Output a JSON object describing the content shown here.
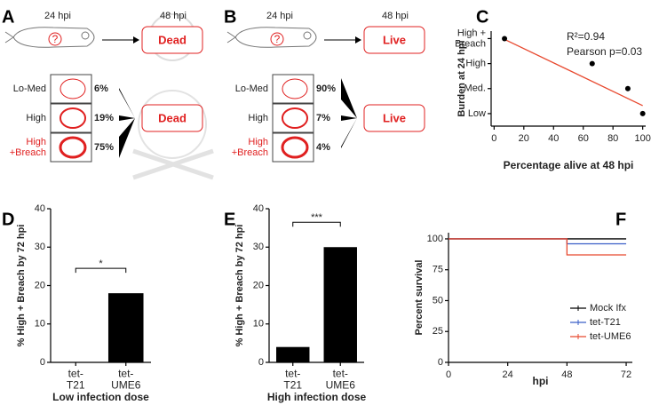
{
  "panel_labels": [
    "A",
    "B",
    "C",
    "D",
    "E",
    "F"
  ],
  "diagrams": [
    {
      "before_label": "24 hpi",
      "after_label": "48 hpi",
      "outcome": "Dead",
      "rows": [
        {
          "label": "Lo-Med",
          "percent": "6%",
          "color": "#222"
        },
        {
          "label": "High",
          "percent": "19%",
          "color": "#222"
        },
        {
          "label": "High\n+Breach",
          "percent": "75%",
          "color": "#e02020"
        }
      ]
    },
    {
      "before_label": "24 hpi",
      "after_label": "48 hpi",
      "outcome": "Live",
      "rows": [
        {
          "label": "Lo-Med",
          "percent": "90%",
          "color": "#222"
        },
        {
          "label": "High",
          "percent": "7%",
          "color": "#222"
        },
        {
          "label": "High\n+Breach",
          "percent": "4%",
          "color": "#e02020"
        }
      ]
    }
  ],
  "chart_data": [
    {
      "type": "scatter",
      "xlabel": "Percentage alive at 48 hpi",
      "ylabel": "Burden at 24 hpi",
      "x": [
        7,
        66,
        90,
        100
      ],
      "values": [
        4,
        3,
        2,
        1
      ],
      "color": "#000",
      "xlim": [
        -2,
        102
      ],
      "xticks": [
        0,
        20,
        40,
        60,
        80,
        100
      ],
      "ylim": [
        0.5,
        4.3
      ],
      "yticks": [
        {
          "value": 1,
          "label": "Low"
        },
        {
          "value": 2,
          "label": "Med."
        },
        {
          "value": 3,
          "label": "High"
        },
        {
          "value": 4,
          "label": "High +\nBreach"
        }
      ],
      "fit": {
        "x": [
          7,
          100
        ],
        "values": [
          3.97,
          1.32
        ],
        "color": "#e8492f"
      },
      "annotations": [
        "R²=0.94",
        "Pearson p=0.03"
      ]
    },
    {
      "type": "bar",
      "xlabel": "Low infection dose",
      "ylabel": "% High + Breach by 72 hpi",
      "categories": [
        "tet-\nT21",
        "tet-\nUME6"
      ],
      "values": [
        0,
        18
      ],
      "color": "#000",
      "ylim": [
        0,
        40
      ],
      "yticks": [
        0,
        10,
        20,
        30,
        40
      ],
      "significance": "*"
    },
    {
      "type": "bar",
      "xlabel": "High infection dose",
      "ylabel": "% High + Breach by 72 hpi",
      "categories": [
        "tet-\nT21",
        "tet-\nUME6"
      ],
      "values": [
        4,
        30
      ],
      "color": "#000",
      "ylim": [
        0,
        40
      ],
      "yticks": [
        0,
        10,
        20,
        30,
        40
      ],
      "significance": "***"
    },
    {
      "type": "line",
      "xlabel": "hpi",
      "ylabel": "Percent survival",
      "xlim": [
        0,
        74.5
      ],
      "xticks": [
        0,
        24,
        48,
        72
      ],
      "ylim": [
        0,
        105
      ],
      "yticks": [
        0,
        25,
        50,
        75,
        100
      ],
      "series": [
        {
          "name": "Mock Ifx",
          "color": "#000",
          "x": [
            0,
            72
          ],
          "values": [
            100,
            100
          ]
        },
        {
          "name": "tet-T21",
          "color": "#3a5fc8",
          "x": [
            0,
            48,
            48,
            72
          ],
          "values": [
            100,
            100,
            96,
            96
          ]
        },
        {
          "name": "tet-UME6",
          "color": "#e8492f",
          "x": [
            0,
            48,
            48,
            72
          ],
          "values": [
            100,
            100,
            87,
            87
          ]
        }
      ]
    }
  ]
}
